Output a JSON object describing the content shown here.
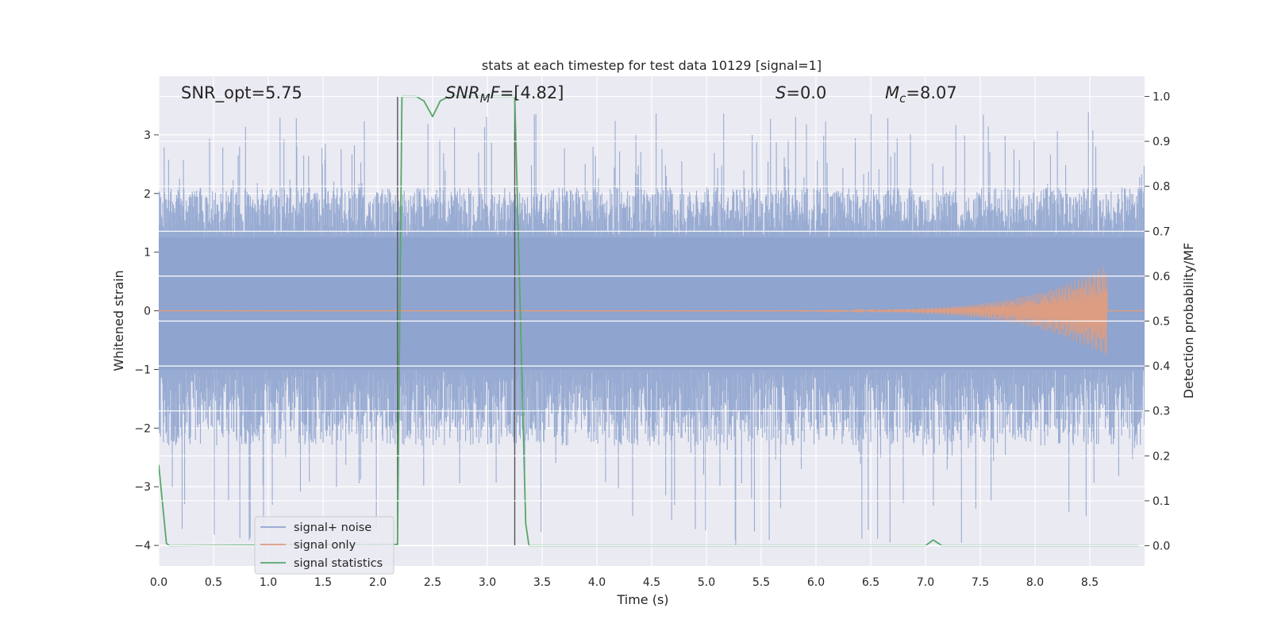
{
  "chart_data": {
    "type": "line",
    "title": "stats at each timestep for test data 10129 [signal=1]",
    "xlabel": "Time (s)",
    "ylabel": "Whitened strain",
    "ylabel_right": "Detection probability/MF",
    "xlim": [
      0.0,
      9.0
    ],
    "ylim": [
      -4.35,
      4.0
    ],
    "ylim_right": [
      -0.045,
      1.045
    ],
    "grid": true,
    "x_ticks": [
      "0.0",
      "0.5",
      "1.0",
      "1.5",
      "2.0",
      "2.5",
      "3.0",
      "3.5",
      "4.0",
      "4.5",
      "5.0",
      "5.5",
      "6.0",
      "6.5",
      "7.0",
      "7.5",
      "8.0",
      "8.5"
    ],
    "y_ticks": [
      "−4",
      "−3",
      "−2",
      "−1",
      "0",
      "1",
      "2",
      "3"
    ],
    "y_right_ticks": [
      "0.0",
      "0.1",
      "0.2",
      "0.3",
      "0.4",
      "0.5",
      "0.6",
      "0.7",
      "0.8",
      "0.9",
      "1.0"
    ],
    "annotations": {
      "snr_opt": "SNR_opt=5.75",
      "snr_mf_a": "SNR",
      "snr_mf_sub": "M",
      "snr_mf_b": "F",
      "snr_mf_val": "=[4.82]",
      "s_var": "S",
      "s_val": "=0.0",
      "mc_var": "M",
      "mc_sub": "c",
      "mc_val": "=8.07"
    },
    "vlines": [
      2.18,
      3.25
    ],
    "legend_position": "lower-left",
    "series": [
      {
        "name": "signal+ noise",
        "color": "#8fa4ce",
        "noise_envelope": {
          "core_low": -1.0,
          "core_high": 1.25,
          "typical_peak": 2.1,
          "max_peak": 3.4,
          "min_trough": -4.0
        }
      },
      {
        "name": "signal only",
        "color": "#dd9d82",
        "chirp": {
          "t_end": 8.66,
          "amp_end": 0.78,
          "grows_after": 4.3
        }
      },
      {
        "name": "signal statistics",
        "color": "#55a868",
        "axis": "right",
        "points": [
          [
            0.0,
            0.18
          ],
          [
            0.07,
            0.005
          ],
          [
            0.1,
            0.0
          ],
          [
            2.18,
            0.003
          ],
          [
            2.22,
            1.0
          ],
          [
            2.35,
            1.0
          ],
          [
            2.42,
            0.99
          ],
          [
            2.5,
            0.955
          ],
          [
            2.57,
            0.99
          ],
          [
            2.65,
            1.0
          ],
          [
            3.25,
            1.0
          ],
          [
            3.35,
            0.05
          ],
          [
            3.38,
            0.0
          ],
          [
            7.0,
            0.0
          ],
          [
            7.07,
            0.013
          ],
          [
            7.15,
            0.0
          ],
          [
            8.95,
            0.0
          ]
        ]
      }
    ]
  }
}
